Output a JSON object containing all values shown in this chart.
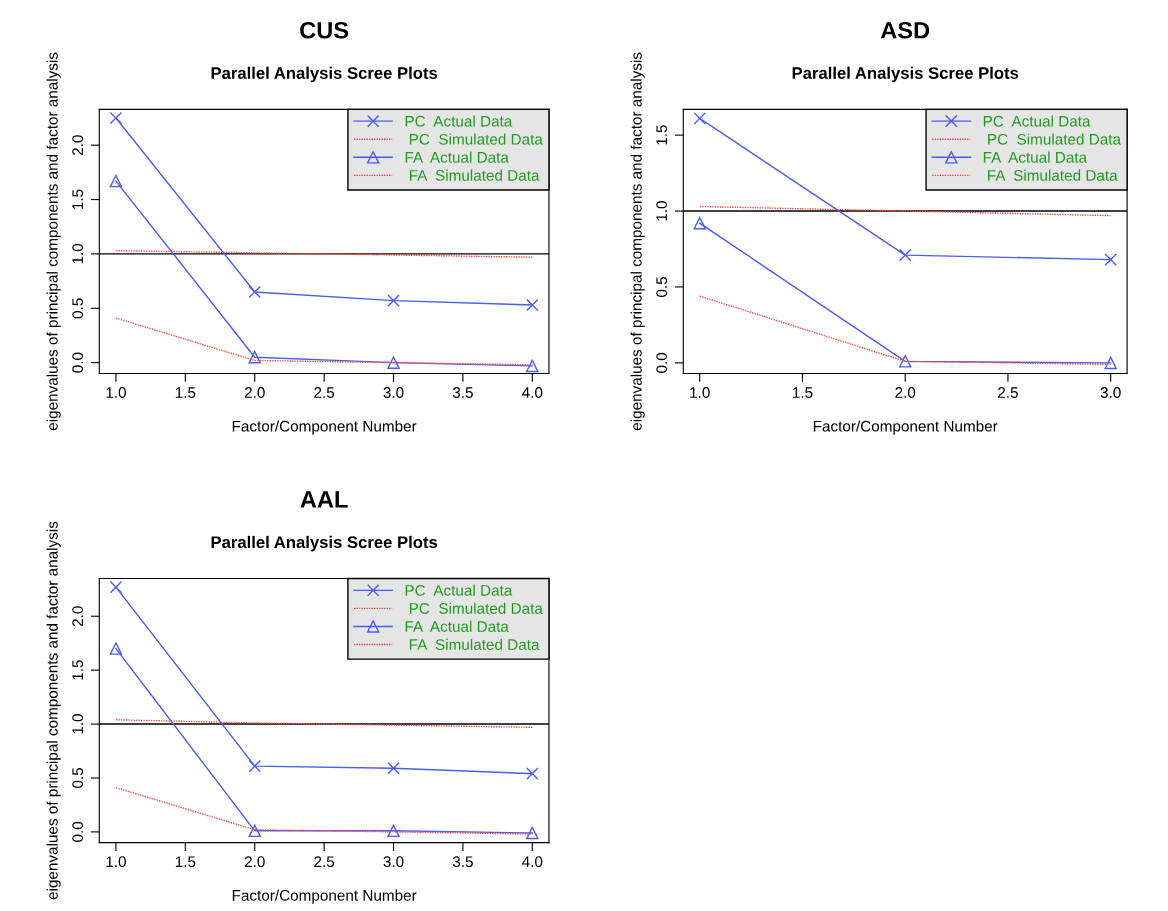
{
  "chart_data": [
    {
      "type": "line",
      "title": "CUS",
      "subtitle": "Parallel Analysis Scree Plots",
      "xlabel": "Factor/Component Number",
      "ylabel": "eigenvalues of principal components and factor analysis",
      "x": [
        1,
        2,
        3,
        4
      ],
      "xlim": [
        0.88,
        4.12
      ],
      "xticks": [
        {
          "value": 1,
          "label": "1.0"
        },
        {
          "value": 1.5,
          "label": "1.5"
        },
        {
          "value": 2,
          "label": "2.0"
        },
        {
          "value": 2.5,
          "label": "2.5"
        },
        {
          "value": 3,
          "label": "3.0"
        },
        {
          "value": 3.5,
          "label": "3.5"
        },
        {
          "value": 4,
          "label": "4.0"
        }
      ],
      "ylim": [
        -0.1,
        2.33
      ],
      "yticks": [
        {
          "value": 0,
          "label": "0.0"
        },
        {
          "value": 0.5,
          "label": "0.5"
        },
        {
          "value": 1,
          "label": "1.0"
        },
        {
          "value": 1.5,
          "label": "1.5"
        },
        {
          "value": 2,
          "label": "2.0"
        }
      ],
      "series": [
        {
          "name": "PC  Actual Data",
          "color": "#4a5cf5",
          "marker": "cross",
          "line_style": "solid",
          "values": [
            2.25,
            0.65,
            0.57,
            0.53
          ]
        },
        {
          "name": " PC  Simulated Data",
          "color": "#ff4a3a",
          "marker": "none",
          "line_style": "dotted",
          "values": [
            1.03,
            1.01,
            0.99,
            0.97
          ]
        },
        {
          "name": "FA  Actual Data",
          "color": "#4a5cf5",
          "marker": "triangle",
          "line_style": "solid",
          "values": [
            1.67,
            0.05,
            0.0,
            -0.03
          ]
        },
        {
          "name": " FA  Simulated Data",
          "color": "#ff4a3a",
          "marker": "none",
          "line_style": "dotted",
          "values": [
            0.41,
            0.02,
            0.0,
            -0.02
          ]
        }
      ],
      "ref_lines": [
        {
          "axis": "y",
          "value": 1,
          "color": "#000000"
        }
      ],
      "legend": "top right",
      "grid": false
    },
    {
      "type": "line",
      "title": "ASD",
      "subtitle": "Parallel Analysis Scree Plots",
      "xlabel": "Factor/Component Number",
      "ylabel": "eigenvalues of principal components and factor analysis",
      "x": [
        1,
        2,
        3
      ],
      "xlim": [
        0.92,
        3.08
      ],
      "xticks": [
        {
          "value": 1,
          "label": "1.0"
        },
        {
          "value": 1.5,
          "label": "1.5"
        },
        {
          "value": 2,
          "label": "2.0"
        },
        {
          "value": 2.5,
          "label": "2.5"
        },
        {
          "value": 3,
          "label": "3.0"
        }
      ],
      "ylim": [
        -0.07,
        1.67
      ],
      "yticks": [
        {
          "value": 0,
          "label": "0.0"
        },
        {
          "value": 0.5,
          "label": "0.5"
        },
        {
          "value": 1,
          "label": "1.0"
        },
        {
          "value": 1.5,
          "label": "1.5"
        }
      ],
      "series": [
        {
          "name": "PC  Actual Data",
          "color": "#4a5cf5",
          "marker": "cross",
          "line_style": "solid",
          "values": [
            1.61,
            0.71,
            0.68
          ]
        },
        {
          "name": " PC  Simulated Data",
          "color": "#ff4a3a",
          "marker": "none",
          "line_style": "dotted",
          "values": [
            1.03,
            1.0,
            0.97
          ]
        },
        {
          "name": "FA  Actual Data",
          "color": "#4a5cf5",
          "marker": "triangle",
          "line_style": "solid",
          "values": [
            0.92,
            0.01,
            0.0
          ]
        },
        {
          "name": " FA  Simulated Data",
          "color": "#ff4a3a",
          "marker": "none",
          "line_style": "dotted",
          "values": [
            0.44,
            0.01,
            -0.01
          ]
        }
      ],
      "ref_lines": [
        {
          "axis": "y",
          "value": 1,
          "color": "#000000"
        }
      ],
      "legend": "top right",
      "grid": false
    },
    {
      "type": "line",
      "title": "AAL",
      "subtitle": "Parallel Analysis Scree Plots",
      "xlabel": "Factor/Component Number",
      "ylabel": "eigenvalues of principal components and factor analysis",
      "x": [
        1,
        2,
        3,
        4
      ],
      "xlim": [
        0.88,
        4.12
      ],
      "xticks": [
        {
          "value": 1,
          "label": "1.0"
        },
        {
          "value": 1.5,
          "label": "1.5"
        },
        {
          "value": 2,
          "label": "2.0"
        },
        {
          "value": 2.5,
          "label": "2.5"
        },
        {
          "value": 3,
          "label": "3.0"
        },
        {
          "value": 3.5,
          "label": "3.5"
        },
        {
          "value": 4,
          "label": "4.0"
        }
      ],
      "ylim": [
        -0.1,
        2.35
      ],
      "yticks": [
        {
          "value": 0,
          "label": "0.0"
        },
        {
          "value": 0.5,
          "label": "0.5"
        },
        {
          "value": 1,
          "label": "1.0"
        },
        {
          "value": 1.5,
          "label": "1.5"
        },
        {
          "value": 2,
          "label": "2.0"
        }
      ],
      "series": [
        {
          "name": "PC  Actual Data",
          "color": "#4a5cf5",
          "marker": "cross",
          "line_style": "solid",
          "values": [
            2.27,
            0.61,
            0.59,
            0.54
          ]
        },
        {
          "name": " PC  Simulated Data",
          "color": "#ff4a3a",
          "marker": "none",
          "line_style": "dotted",
          "values": [
            1.04,
            1.01,
            0.99,
            0.97
          ]
        },
        {
          "name": "FA  Actual Data",
          "color": "#4a5cf5",
          "marker": "triangle",
          "line_style": "solid",
          "values": [
            1.7,
            0.01,
            0.01,
            -0.01
          ]
        },
        {
          "name": " FA  Simulated Data",
          "color": "#ff4a3a",
          "marker": "none",
          "line_style": "dotted",
          "values": [
            0.41,
            0.02,
            0.0,
            -0.02
          ]
        }
      ],
      "ref_lines": [
        {
          "axis": "y",
          "value": 1,
          "color": "#000000"
        }
      ],
      "legend": "top right",
      "grid": false
    }
  ]
}
